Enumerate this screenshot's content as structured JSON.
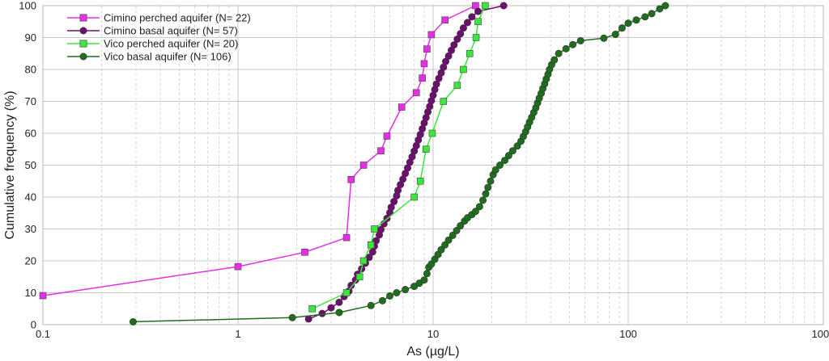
{
  "chart_data": {
    "type": "line",
    "title": "",
    "xlabel": "As (µg/L)",
    "ylabel": "Cumulative frequency (%)",
    "x_scale": "log",
    "xlim": [
      0.1,
      1000
    ],
    "ylim": [
      0,
      100
    ],
    "x_ticks": [
      0.1,
      1,
      10,
      100,
      1000
    ],
    "x_tick_labels": [
      "0.1",
      "1",
      "10",
      "100",
      "1000"
    ],
    "y_ticks": [
      0,
      10,
      20,
      30,
      40,
      50,
      60,
      70,
      80,
      90,
      100
    ],
    "y_tick_labels": [
      "0",
      "10",
      "20",
      "30",
      "40",
      "50",
      "60",
      "70",
      "80",
      "90",
      "100"
    ],
    "grid": true,
    "legend_position": "top-left",
    "series": [
      {
        "name": "Cimino perched aquifer (N= 22)",
        "color": "#e62ee6",
        "marker": "square",
        "points": [
          [
            0.1,
            9.1
          ],
          [
            1.0,
            18.2
          ],
          [
            2.2,
            22.7
          ],
          [
            3.6,
            27.3
          ],
          [
            3.8,
            45.5
          ],
          [
            4.4,
            50.0
          ],
          [
            5.4,
            54.5
          ],
          [
            5.8,
            59.1
          ],
          [
            6.9,
            68.2
          ],
          [
            8.2,
            72.7
          ],
          [
            8.8,
            77.3
          ],
          [
            9.0,
            81.8
          ],
          [
            9.3,
            86.4
          ],
          [
            9.8,
            90.9
          ],
          [
            11.5,
            95.5
          ],
          [
            16.5,
            100.0
          ]
        ]
      },
      {
        "name": "Cimino basal aquifer (N= 57)",
        "color": "#6e0e6e",
        "marker": "circle",
        "points": [
          [
            2.3,
            1.8
          ],
          [
            2.7,
            3.5
          ],
          [
            3.0,
            5.3
          ],
          [
            3.3,
            7.0
          ],
          [
            3.5,
            8.8
          ],
          [
            3.7,
            10.5
          ],
          [
            3.8,
            12.3
          ],
          [
            4.0,
            14.0
          ],
          [
            4.1,
            15.8
          ],
          [
            4.3,
            17.5
          ],
          [
            4.5,
            19.3
          ],
          [
            4.7,
            21.1
          ],
          [
            4.9,
            22.8
          ],
          [
            5.0,
            24.6
          ],
          [
            5.1,
            26.3
          ],
          [
            5.3,
            28.1
          ],
          [
            5.4,
            29.8
          ],
          [
            5.6,
            31.6
          ],
          [
            5.8,
            33.3
          ],
          [
            6.0,
            35.1
          ],
          [
            6.1,
            36.8
          ],
          [
            6.3,
            38.6
          ],
          [
            6.5,
            40.4
          ],
          [
            6.6,
            42.1
          ],
          [
            6.8,
            43.9
          ],
          [
            7.0,
            45.6
          ],
          [
            7.2,
            47.4
          ],
          [
            7.4,
            49.1
          ],
          [
            7.6,
            50.9
          ],
          [
            7.8,
            52.6
          ],
          [
            8.0,
            54.4
          ],
          [
            8.2,
            56.1
          ],
          [
            8.4,
            57.9
          ],
          [
            8.6,
            59.6
          ],
          [
            8.8,
            61.4
          ],
          [
            9.0,
            63.2
          ],
          [
            9.2,
            64.9
          ],
          [
            9.4,
            66.7
          ],
          [
            9.6,
            68.4
          ],
          [
            9.8,
            70.2
          ],
          [
            10.0,
            71.9
          ],
          [
            10.2,
            73.7
          ],
          [
            10.4,
            75.4
          ],
          [
            10.7,
            77.2
          ],
          [
            11.0,
            78.9
          ],
          [
            11.3,
            80.7
          ],
          [
            11.6,
            82.5
          ],
          [
            12.0,
            84.2
          ],
          [
            12.4,
            86.0
          ],
          [
            12.8,
            87.7
          ],
          [
            13.3,
            89.5
          ],
          [
            13.8,
            91.2
          ],
          [
            14.3,
            93.0
          ],
          [
            15.0,
            94.7
          ],
          [
            15.8,
            96.5
          ],
          [
            17.0,
            98.2
          ],
          [
            23.0,
            100.0
          ]
        ]
      },
      {
        "name": "Vico perched aquifer (N= 20)",
        "color": "#3ce63c",
        "marker": "square",
        "points": [
          [
            2.4,
            5.0
          ],
          [
            3.6,
            10.0
          ],
          [
            4.2,
            15.0
          ],
          [
            4.4,
            20.0
          ],
          [
            4.8,
            25.0
          ],
          [
            5.0,
            30.0
          ],
          [
            8.0,
            40.0
          ],
          [
            8.6,
            45.0
          ],
          [
            9.2,
            55.0
          ],
          [
            9.9,
            60.0
          ],
          [
            11.3,
            70.0
          ],
          [
            13.3,
            75.0
          ],
          [
            14.3,
            80.0
          ],
          [
            15.4,
            85.0
          ],
          [
            16.6,
            90.0
          ],
          [
            17.0,
            95.0
          ],
          [
            18.5,
            100.0
          ]
        ]
      },
      {
        "name": "Vico basal aquifer (N= 106)",
        "color": "#1e6e1e",
        "marker": "circle",
        "points": [
          [
            0.29,
            0.9
          ],
          [
            1.9,
            2.2
          ],
          [
            3.3,
            3.8
          ],
          [
            4.8,
            6.0
          ],
          [
            5.5,
            7.5
          ],
          [
            6.0,
            9.0
          ],
          [
            6.5,
            10.0
          ],
          [
            7.2,
            11.0
          ],
          [
            8.0,
            12.0
          ],
          [
            8.5,
            13.0
          ],
          [
            9.0,
            14.0
          ],
          [
            9.3,
            16.0
          ],
          [
            9.5,
            18.0
          ],
          [
            9.8,
            19.0
          ],
          [
            10.2,
            20.5
          ],
          [
            10.6,
            22.0
          ],
          [
            11.0,
            23.5
          ],
          [
            11.5,
            25.0
          ],
          [
            12.0,
            26.5
          ],
          [
            12.6,
            28.0
          ],
          [
            13.2,
            29.5
          ],
          [
            13.8,
            31.0
          ],
          [
            14.5,
            32.5
          ],
          [
            15.0,
            33.5
          ],
          [
            15.8,
            34.5
          ],
          [
            16.5,
            35.5
          ],
          [
            17.3,
            37.0
          ],
          [
            18.0,
            39.0
          ],
          [
            18.6,
            41.0
          ],
          [
            19.1,
            43.0
          ],
          [
            19.7,
            45.0
          ],
          [
            20.3,
            47.0
          ],
          [
            20.9,
            48.5
          ],
          [
            22.0,
            50.0
          ],
          [
            23.3,
            51.5
          ],
          [
            24.4,
            53.0
          ],
          [
            25.6,
            54.5
          ],
          [
            27.0,
            56.0
          ],
          [
            28.2,
            57.5
          ],
          [
            29.0,
            59.0
          ],
          [
            29.8,
            60.5
          ],
          [
            30.5,
            62.0
          ],
          [
            31.2,
            63.5
          ],
          [
            32.0,
            65.0
          ],
          [
            32.8,
            66.5
          ],
          [
            33.6,
            68.0
          ],
          [
            34.3,
            69.5
          ],
          [
            35.0,
            71.0
          ],
          [
            35.8,
            72.5
          ],
          [
            36.5,
            74.0
          ],
          [
            37.3,
            75.5
          ],
          [
            38.0,
            77.0
          ],
          [
            38.8,
            78.5
          ],
          [
            39.5,
            80.0
          ],
          [
            40.5,
            81.5
          ],
          [
            41.8,
            83.0
          ],
          [
            44.0,
            85.0
          ],
          [
            48.0,
            86.5
          ],
          [
            52.0,
            87.8
          ],
          [
            57.0,
            89.0
          ],
          [
            75.0,
            89.8
          ],
          [
            86.0,
            91.0
          ],
          [
            93.0,
            93.0
          ],
          [
            100.0,
            94.5
          ],
          [
            110.0,
            95.5
          ],
          [
            122.0,
            96.5
          ],
          [
            132.0,
            97.5
          ],
          [
            145.0,
            99.0
          ],
          [
            155.0,
            100.0
          ]
        ]
      }
    ]
  }
}
